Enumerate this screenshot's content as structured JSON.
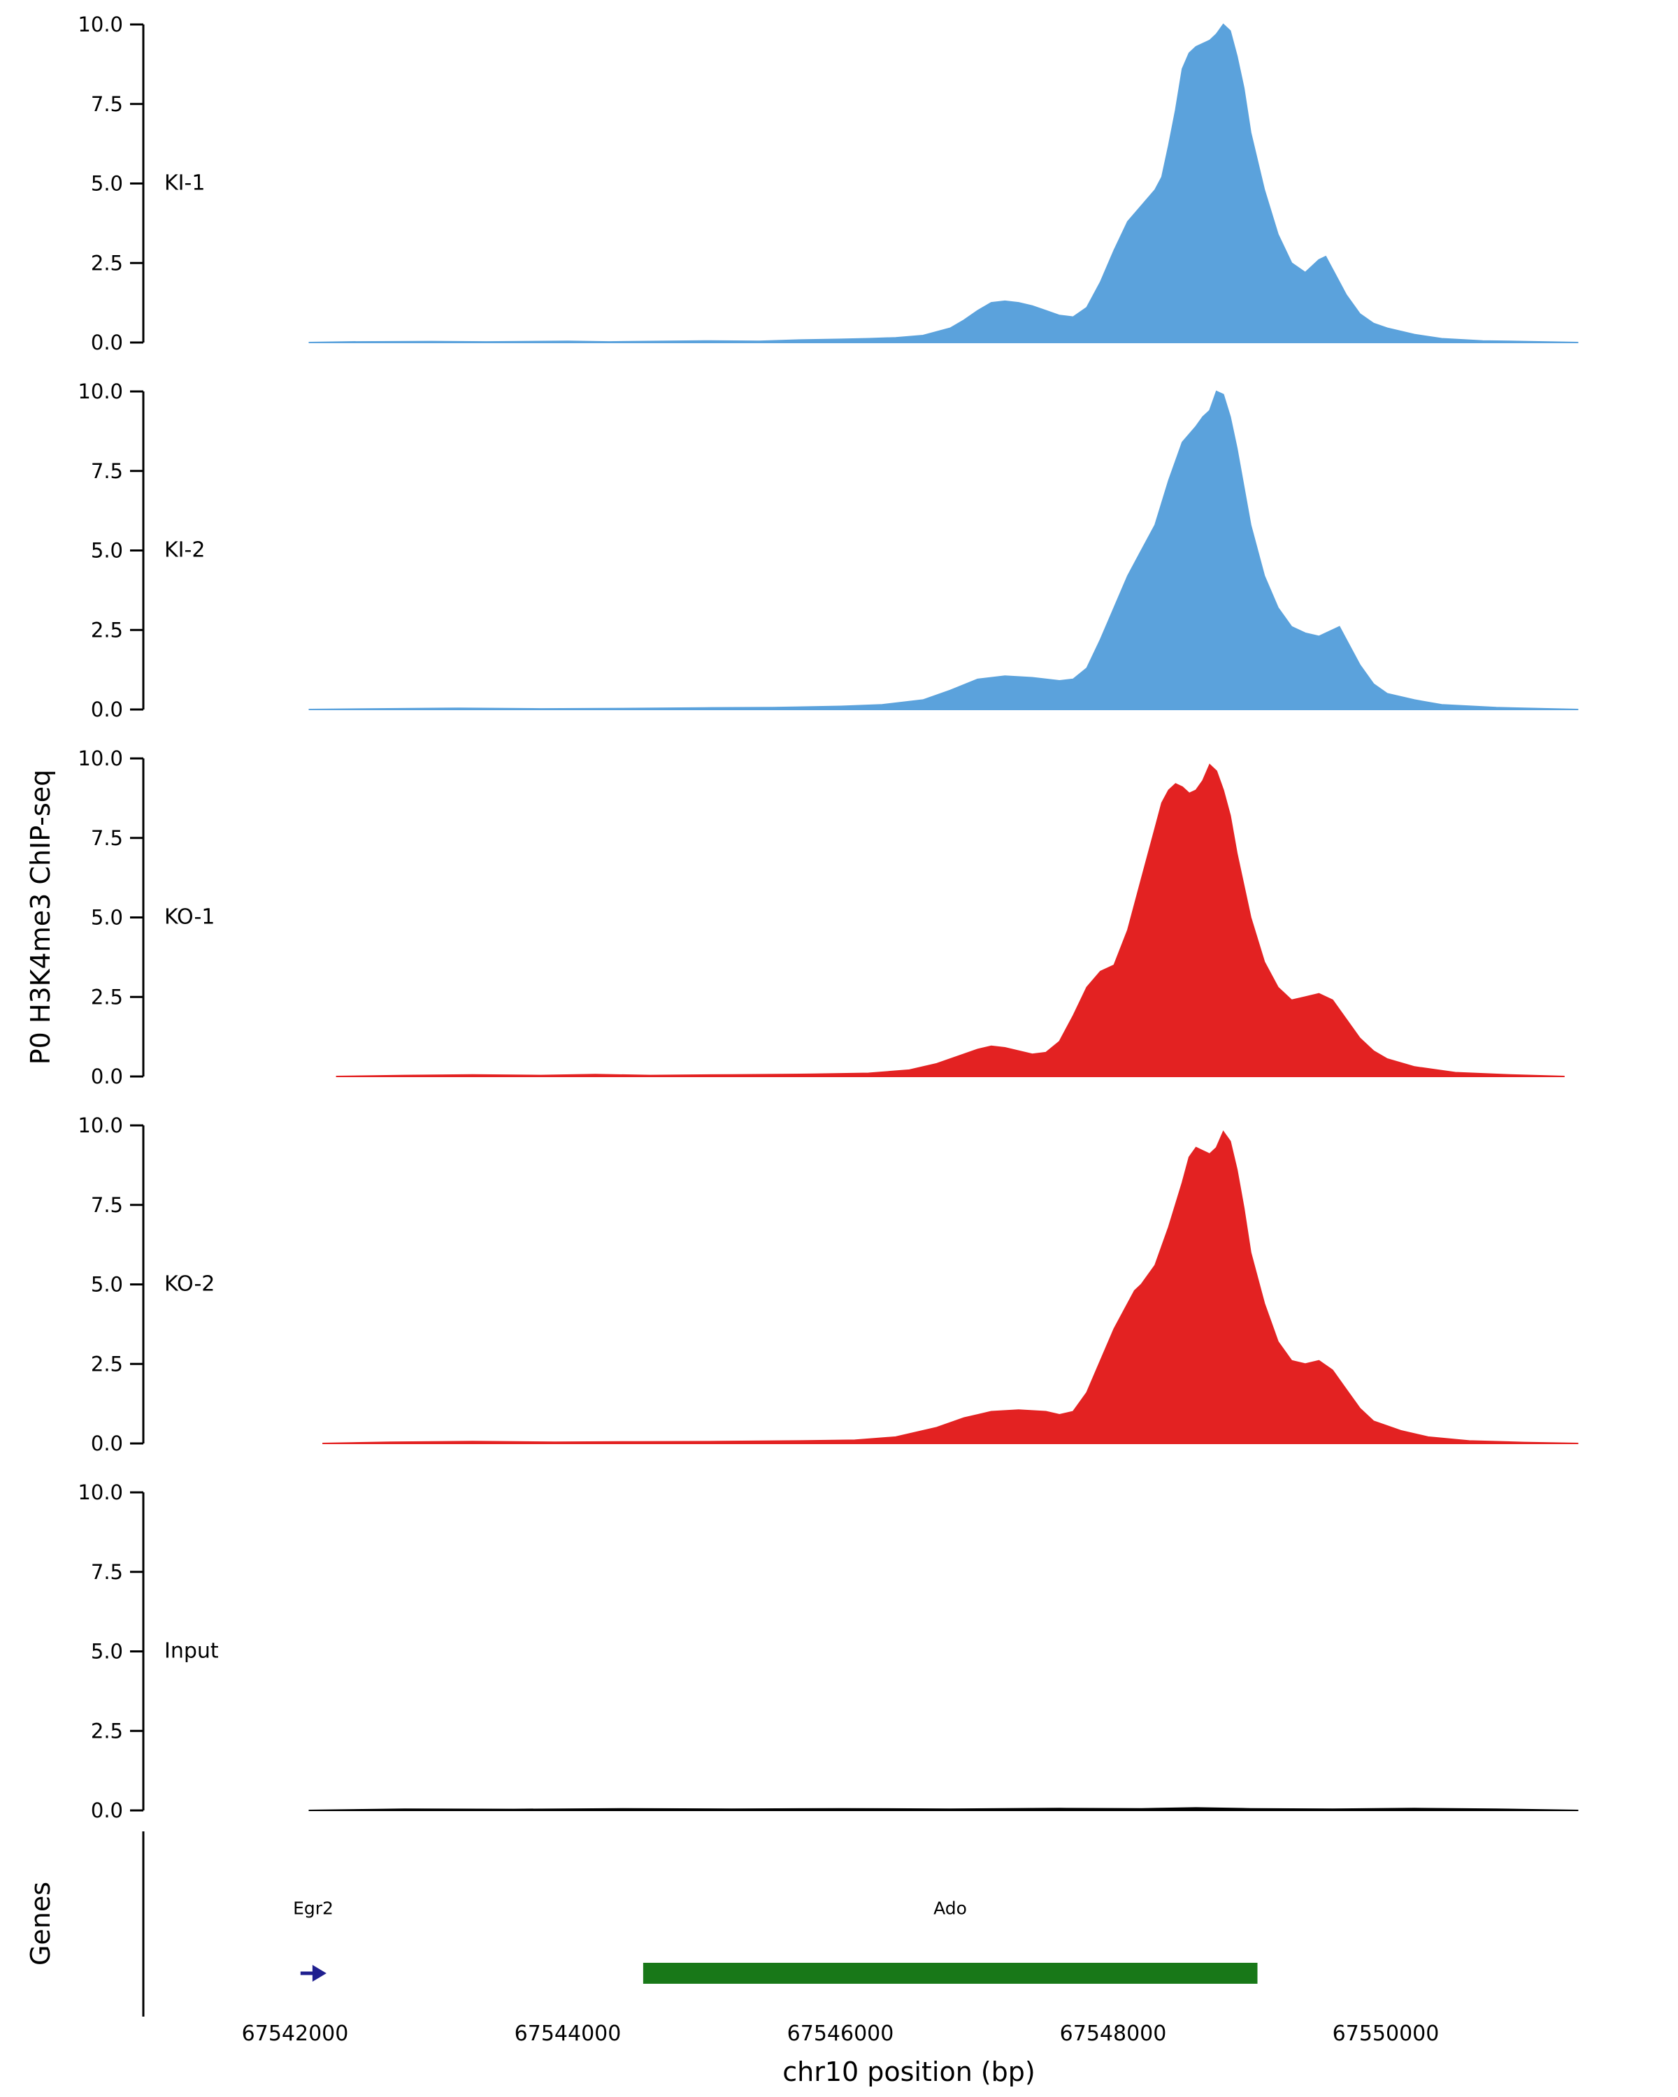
{
  "figure": {
    "y_axis_label": "P0 H3K4me3 ChIP-seq",
    "genes_panel_label": "Genes",
    "x_axis_label": "chr10 position (bp)"
  },
  "chart_data": {
    "type": "area",
    "title": "",
    "ylabel": "P0 H3K4me3 ChIP-seq",
    "xlabel": "chr10 position (bp)",
    "ylim": [
      0,
      10.5
    ],
    "xlim": [
      67541900,
      67551500
    ],
    "grid": false,
    "legend_position": "none",
    "y_ticks": [
      0.0,
      2.5,
      5.0,
      7.5,
      10.0
    ],
    "y_tick_labels": [
      "0.0",
      "2.5",
      "5.0",
      "7.5",
      "10.0"
    ],
    "x_ticks": [
      67542000,
      67544000,
      67546000,
      67548000,
      67550000
    ],
    "x_tick_labels": [
      "67542000",
      "67544000",
      "67546000",
      "67548000",
      "67550000"
    ],
    "tracks": [
      {
        "name": "KI-1",
        "color": "#5BA2DC",
        "points": [
          [
            67542100,
            0
          ],
          [
            67542400,
            0.02
          ],
          [
            67543000,
            0.03
          ],
          [
            67543400,
            0.02
          ],
          [
            67544000,
            0.04
          ],
          [
            67544300,
            0.02
          ],
          [
            67545000,
            0.05
          ],
          [
            67545400,
            0.04
          ],
          [
            67545700,
            0.08
          ],
          [
            67546000,
            0.1
          ],
          [
            67546200,
            0.12
          ],
          [
            67546400,
            0.15
          ],
          [
            67546600,
            0.22
          ],
          [
            67546800,
            0.45
          ],
          [
            67546900,
            0.7
          ],
          [
            67547000,
            1.0
          ],
          [
            67547100,
            1.25
          ],
          [
            67547200,
            1.3
          ],
          [
            67547300,
            1.25
          ],
          [
            67547400,
            1.15
          ],
          [
            67547500,
            1.0
          ],
          [
            67547600,
            0.85
          ],
          [
            67547700,
            0.8
          ],
          [
            67547800,
            1.1
          ],
          [
            67547900,
            1.9
          ],
          [
            67548000,
            2.9
          ],
          [
            67548100,
            3.8
          ],
          [
            67548200,
            4.3
          ],
          [
            67548300,
            4.8
          ],
          [
            67548350,
            5.2
          ],
          [
            67548400,
            6.2
          ],
          [
            67548450,
            7.3
          ],
          [
            67548500,
            8.6
          ],
          [
            67548550,
            9.1
          ],
          [
            67548600,
            9.3
          ],
          [
            67548700,
            9.5
          ],
          [
            67548750,
            9.7
          ],
          [
            67548800,
            10.0
          ],
          [
            67548850,
            9.8
          ],
          [
            67548900,
            9.0
          ],
          [
            67548950,
            8.0
          ],
          [
            67549000,
            6.6
          ],
          [
            67549100,
            4.8
          ],
          [
            67549200,
            3.4
          ],
          [
            67549300,
            2.5
          ],
          [
            67549400,
            2.2
          ],
          [
            67549500,
            2.6
          ],
          [
            67549550,
            2.7
          ],
          [
            67549600,
            2.3
          ],
          [
            67549700,
            1.5
          ],
          [
            67549800,
            0.9
          ],
          [
            67549900,
            0.6
          ],
          [
            67550000,
            0.45
          ],
          [
            67550200,
            0.25
          ],
          [
            67550400,
            0.12
          ],
          [
            67550700,
            0.05
          ],
          [
            67551000,
            0.03
          ],
          [
            67551400,
            0.0
          ]
        ]
      },
      {
        "name": "KI-2",
        "color": "#5BA2DC",
        "points": [
          [
            67542100,
            0
          ],
          [
            67542600,
            0.02
          ],
          [
            67543200,
            0.04
          ],
          [
            67543800,
            0.02
          ],
          [
            67544400,
            0.03
          ],
          [
            67545000,
            0.05
          ],
          [
            67545500,
            0.06
          ],
          [
            67546000,
            0.1
          ],
          [
            67546300,
            0.15
          ],
          [
            67546600,
            0.3
          ],
          [
            67546800,
            0.6
          ],
          [
            67547000,
            0.95
          ],
          [
            67547200,
            1.05
          ],
          [
            67547400,
            1.0
          ],
          [
            67547600,
            0.9
          ],
          [
            67547700,
            0.95
          ],
          [
            67547800,
            1.3
          ],
          [
            67547900,
            2.2
          ],
          [
            67548000,
            3.2
          ],
          [
            67548100,
            4.2
          ],
          [
            67548200,
            5.0
          ],
          [
            67548300,
            5.8
          ],
          [
            67548400,
            7.2
          ],
          [
            67548500,
            8.4
          ],
          [
            67548600,
            8.9
          ],
          [
            67548650,
            9.2
          ],
          [
            67548700,
            9.4
          ],
          [
            67548750,
            10.0
          ],
          [
            67548800,
            9.9
          ],
          [
            67548850,
            9.2
          ],
          [
            67548900,
            8.2
          ],
          [
            67548950,
            7.0
          ],
          [
            67549000,
            5.8
          ],
          [
            67549100,
            4.2
          ],
          [
            67549200,
            3.2
          ],
          [
            67549300,
            2.6
          ],
          [
            67549400,
            2.4
          ],
          [
            67549500,
            2.3
          ],
          [
            67549600,
            2.5
          ],
          [
            67549650,
            2.6
          ],
          [
            67549700,
            2.2
          ],
          [
            67549800,
            1.4
          ],
          [
            67549900,
            0.8
          ],
          [
            67550000,
            0.5
          ],
          [
            67550200,
            0.3
          ],
          [
            67550400,
            0.15
          ],
          [
            67550800,
            0.06
          ],
          [
            67551200,
            0.02
          ],
          [
            67551400,
            0.0
          ]
        ]
      },
      {
        "name": "KO-1",
        "color": "#E32222",
        "points": [
          [
            67542300,
            0
          ],
          [
            67542800,
            0.03
          ],
          [
            67543300,
            0.05
          ],
          [
            67543800,
            0.03
          ],
          [
            67544200,
            0.06
          ],
          [
            67544600,
            0.03
          ],
          [
            67545200,
            0.05
          ],
          [
            67545800,
            0.07
          ],
          [
            67546200,
            0.1
          ],
          [
            67546500,
            0.2
          ],
          [
            67546700,
            0.4
          ],
          [
            67546900,
            0.7
          ],
          [
            67547000,
            0.85
          ],
          [
            67547100,
            0.95
          ],
          [
            67547200,
            0.9
          ],
          [
            67547300,
            0.8
          ],
          [
            67547400,
            0.7
          ],
          [
            67547500,
            0.75
          ],
          [
            67547600,
            1.1
          ],
          [
            67547700,
            1.9
          ],
          [
            67547800,
            2.8
          ],
          [
            67547900,
            3.3
          ],
          [
            67548000,
            3.5
          ],
          [
            67548100,
            4.6
          ],
          [
            67548200,
            6.2
          ],
          [
            67548300,
            7.8
          ],
          [
            67548350,
            8.6
          ],
          [
            67548400,
            9.0
          ],
          [
            67548450,
            9.2
          ],
          [
            67548500,
            9.1
          ],
          [
            67548550,
            8.9
          ],
          [
            67548600,
            9.0
          ],
          [
            67548650,
            9.3
          ],
          [
            67548700,
            9.8
          ],
          [
            67548750,
            9.6
          ],
          [
            67548800,
            9.0
          ],
          [
            67548850,
            8.2
          ],
          [
            67548900,
            7.0
          ],
          [
            67549000,
            5.0
          ],
          [
            67549100,
            3.6
          ],
          [
            67549200,
            2.8
          ],
          [
            67549300,
            2.4
          ],
          [
            67549400,
            2.5
          ],
          [
            67549500,
            2.6
          ],
          [
            67549600,
            2.4
          ],
          [
            67549700,
            1.8
          ],
          [
            67549800,
            1.2
          ],
          [
            67549900,
            0.8
          ],
          [
            67550000,
            0.55
          ],
          [
            67550200,
            0.3
          ],
          [
            67550500,
            0.12
          ],
          [
            67550900,
            0.05
          ],
          [
            67551300,
            0.0
          ]
        ]
      },
      {
        "name": "KO-2",
        "color": "#E32222",
        "points": [
          [
            67542200,
            0
          ],
          [
            67542700,
            0.04
          ],
          [
            67543300,
            0.06
          ],
          [
            67543900,
            0.04
          ],
          [
            67544500,
            0.05
          ],
          [
            67545100,
            0.06
          ],
          [
            67545700,
            0.08
          ],
          [
            67546100,
            0.1
          ],
          [
            67546400,
            0.2
          ],
          [
            67546700,
            0.5
          ],
          [
            67546900,
            0.8
          ],
          [
            67547100,
            1.0
          ],
          [
            67547300,
            1.05
          ],
          [
            67547500,
            1.0
          ],
          [
            67547600,
            0.9
          ],
          [
            67547700,
            1.0
          ],
          [
            67547800,
            1.6
          ],
          [
            67547900,
            2.6
          ],
          [
            67548000,
            3.6
          ],
          [
            67548100,
            4.4
          ],
          [
            67548150,
            4.8
          ],
          [
            67548200,
            5.0
          ],
          [
            67548300,
            5.6
          ],
          [
            67548400,
            6.8
          ],
          [
            67548500,
            8.2
          ],
          [
            67548550,
            9.0
          ],
          [
            67548600,
            9.3
          ],
          [
            67548650,
            9.2
          ],
          [
            67548700,
            9.1
          ],
          [
            67548750,
            9.3
          ],
          [
            67548800,
            9.8
          ],
          [
            67548850,
            9.5
          ],
          [
            67548900,
            8.6
          ],
          [
            67548950,
            7.4
          ],
          [
            67549000,
            6.0
          ],
          [
            67549100,
            4.4
          ],
          [
            67549200,
            3.2
          ],
          [
            67549300,
            2.6
          ],
          [
            67549400,
            2.5
          ],
          [
            67549500,
            2.6
          ],
          [
            67549600,
            2.3
          ],
          [
            67549700,
            1.7
          ],
          [
            67549800,
            1.1
          ],
          [
            67549900,
            0.7
          ],
          [
            67550100,
            0.4
          ],
          [
            67550300,
            0.2
          ],
          [
            67550600,
            0.08
          ],
          [
            67551000,
            0.03
          ],
          [
            67551400,
            0.0
          ]
        ]
      },
      {
        "name": "Input",
        "color": "#000000",
        "points": [
          [
            67542100,
            0.0
          ],
          [
            67542800,
            0.04
          ],
          [
            67543600,
            0.03
          ],
          [
            67544400,
            0.05
          ],
          [
            67545200,
            0.04
          ],
          [
            67546000,
            0.05
          ],
          [
            67546800,
            0.04
          ],
          [
            67547600,
            0.06
          ],
          [
            67548200,
            0.05
          ],
          [
            67548600,
            0.08
          ],
          [
            67549000,
            0.05
          ],
          [
            67549600,
            0.04
          ],
          [
            67550200,
            0.06
          ],
          [
            67550800,
            0.04
          ],
          [
            67551400,
            0.0
          ]
        ]
      }
    ],
    "genes": [
      {
        "name": "Egr2",
        "glyph": "arrow",
        "start": 67542040,
        "end": 67542230,
        "color": "#1F1F8F"
      },
      {
        "name": "Ado",
        "glyph": "box",
        "start": 67544550,
        "end": 67549050,
        "color": "#187818"
      }
    ]
  }
}
